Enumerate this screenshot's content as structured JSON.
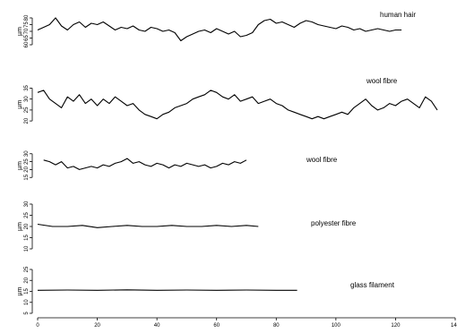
{
  "chart_data": {
    "type": "line",
    "title": "",
    "x_axis": {
      "label": "mm",
      "ticks": [
        0,
        20,
        40,
        60,
        80,
        100,
        120,
        140
      ],
      "range": [
        0,
        140
      ]
    },
    "panels": [
      {
        "name": "human hair",
        "ylabel": "µm",
        "yticks": [
          60,
          65,
          70,
          75,
          80
        ],
        "ylim": [
          60,
          80
        ],
        "x": [
          0,
          2,
          4,
          6,
          8,
          10,
          12,
          14,
          16,
          18,
          20,
          22,
          24,
          26,
          28,
          30,
          32,
          34,
          36,
          38,
          40,
          42,
          44,
          46,
          48,
          50,
          52,
          54,
          56,
          58,
          60,
          62,
          64,
          66,
          68,
          70,
          72,
          74,
          76,
          78,
          80,
          82,
          84,
          86,
          88,
          90,
          92,
          94,
          96,
          98,
          100,
          102,
          104,
          106,
          108,
          110,
          112,
          114,
          116,
          118,
          120,
          122
        ],
        "y": [
          71,
          73,
          75,
          80,
          74,
          71,
          75,
          77,
          73,
          76,
          75,
          77,
          74,
          71,
          73,
          72,
          74,
          71,
          70,
          73,
          72,
          70,
          71,
          69,
          63,
          66,
          68,
          70,
          71,
          69,
          72,
          70,
          68,
          70,
          66,
          67,
          69,
          75,
          78,
          79,
          76,
          77,
          75,
          73,
          76,
          78,
          77,
          75,
          74,
          73,
          72,
          74,
          73,
          71,
          72,
          70,
          71,
          72,
          71,
          70,
          71,
          71
        ]
      },
      {
        "name": "wool fibre",
        "ylabel": "µm",
        "yticks": [
          20,
          25,
          30,
          35
        ],
        "ylim": [
          18,
          36
        ],
        "x": [
          0,
          2,
          4,
          6,
          8,
          10,
          12,
          14,
          16,
          18,
          20,
          22,
          24,
          26,
          28,
          30,
          32,
          34,
          36,
          38,
          40,
          42,
          44,
          46,
          48,
          50,
          52,
          54,
          56,
          58,
          60,
          62,
          64,
          66,
          68,
          70,
          72,
          74,
          76,
          78,
          80,
          82,
          84,
          86,
          88,
          90,
          92,
          94,
          96,
          98,
          100,
          102,
          104,
          106,
          108,
          110,
          112,
          114,
          116,
          118,
          120,
          122,
          124,
          126,
          128,
          130,
          132,
          134
        ],
        "y": [
          33,
          34,
          30,
          28,
          26,
          31,
          29,
          32,
          28,
          30,
          27,
          30,
          28,
          31,
          29,
          27,
          28,
          25,
          23,
          22,
          21,
          23,
          24,
          26,
          27,
          28,
          30,
          31,
          32,
          34,
          33,
          31,
          30,
          32,
          29,
          30,
          31,
          28,
          29,
          30,
          28,
          27,
          25,
          24,
          23,
          22,
          21,
          22,
          21,
          22,
          23,
          24,
          23,
          26,
          28,
          30,
          27,
          25,
          26,
          28,
          27,
          29,
          30,
          28,
          26,
          31,
          29,
          25
        ]
      },
      {
        "name": "wool fibre",
        "ylabel": "µm",
        "yticks": [
          15,
          20,
          25,
          30
        ],
        "ylim": [
          14,
          31
        ],
        "x": [
          2,
          4,
          6,
          8,
          10,
          12,
          14,
          16,
          18,
          20,
          22,
          24,
          26,
          28,
          30,
          32,
          34,
          36,
          38,
          40,
          42,
          44,
          46,
          48,
          50,
          52,
          54,
          56,
          58,
          60,
          62,
          64,
          66,
          68,
          70
        ],
        "y": [
          26,
          25,
          23,
          25,
          21,
          22,
          20,
          21,
          22,
          21,
          23,
          22,
          24,
          25,
          27,
          24,
          25,
          23,
          22,
          24,
          23,
          21,
          23,
          22,
          24,
          23,
          22,
          23,
          21,
          22,
          24,
          23,
          25,
          24,
          26
        ]
      },
      {
        "name": "polyester fibre",
        "ylabel": "µm",
        "yticks": [
          10,
          15,
          20,
          25,
          30
        ],
        "ylim": [
          10,
          30
        ],
        "x": [
          0,
          5,
          10,
          15,
          20,
          25,
          30,
          35,
          40,
          45,
          50,
          55,
          60,
          65,
          70,
          74
        ],
        "y": [
          21,
          20,
          20,
          20.5,
          19.5,
          20,
          20.5,
          20,
          20,
          20.5,
          20,
          20,
          20.5,
          20,
          20.5,
          20
        ]
      },
      {
        "name": "glass filament",
        "ylabel": "µm",
        "yticks": [
          5,
          10,
          15,
          20,
          25
        ],
        "ylim": [
          5,
          25
        ],
        "x": [
          0,
          10,
          20,
          30,
          40,
          50,
          60,
          70,
          80,
          87
        ],
        "y": [
          15.5,
          15.6,
          15.5,
          15.7,
          15.5,
          15.6,
          15.5,
          15.6,
          15.5,
          15.5
        ]
      }
    ],
    "colors": {
      "line": "#000000",
      "axis": "#000000"
    },
    "grid": false,
    "legend": "none"
  }
}
